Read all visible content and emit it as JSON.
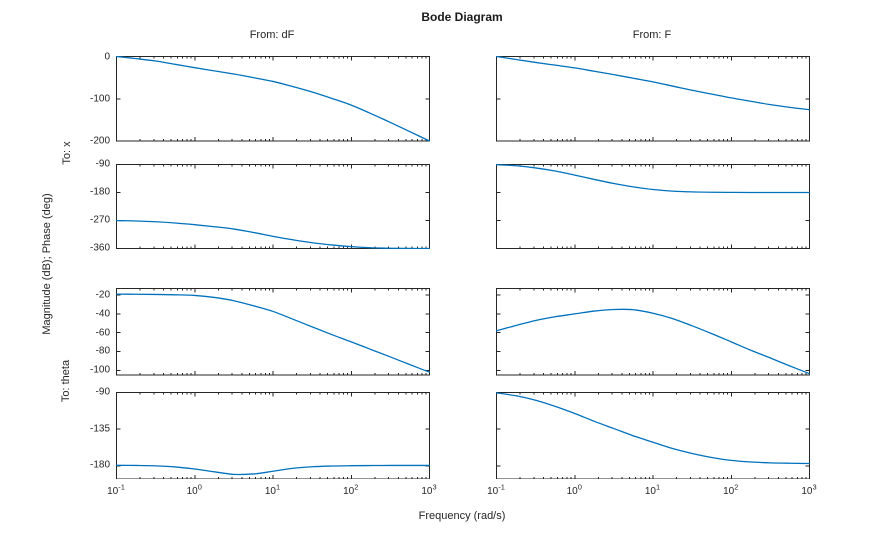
{
  "figure": {
    "title": "Bode Diagram",
    "xlabel": "Frequency (rad/s)",
    "ylabel": "Magnitude (dB); Phase (deg)",
    "column_headers": [
      "From: dF",
      "From: F"
    ],
    "row_group_labels": [
      "To: x",
      "To: theta"
    ],
    "background": "#ffffff"
  },
  "style": {
    "line_color": "#0072BD",
    "axis_color": "#262626",
    "text_color": "#262626",
    "title_color": "#1a1a1a"
  },
  "chart_data": {
    "type": "line",
    "x_scale": "log",
    "grid": false,
    "legend": "none",
    "xlim": [
      -1,
      3
    ],
    "x_tick_base": "10",
    "x_tick_exponents": [
      -1,
      0,
      1,
      2,
      3
    ],
    "x_log10": [
      -1,
      -0.75,
      -0.5,
      -0.25,
      0,
      0.25,
      0.5,
      0.75,
      1,
      1.25,
      1.5,
      1.75,
      2,
      2.25,
      2.5,
      2.75,
      3
    ],
    "panels": [
      {
        "name": "magnitude-to-x-from-dF",
        "row": 0,
        "col": 0,
        "input": "dF",
        "output": "x",
        "quantity": "magnitude-dB",
        "ylim": [
          -200,
          0
        ],
        "yticks": [
          0,
          -100,
          -200
        ],
        "values": [
          0,
          -5,
          -10.7,
          -18.5,
          -26.5,
          -34,
          -41.5,
          -50,
          -59,
          -71,
          -84,
          -99,
          -115,
          -135,
          -156,
          -178,
          -200
        ]
      },
      {
        "name": "magnitude-to-x-from-F",
        "row": 0,
        "col": 1,
        "input": "F",
        "output": "x",
        "quantity": "magnitude-dB",
        "ylim": [
          -200,
          0
        ],
        "yticks": [
          0,
          -100,
          -200
        ],
        "values": [
          0,
          -7,
          -14,
          -20.5,
          -27,
          -35,
          -43,
          -51.5,
          -60,
          -70,
          -80,
          -89,
          -98,
          -106,
          -114,
          -120.5,
          -126
        ]
      },
      {
        "name": "phase-to-x-from-dF",
        "row": 1,
        "col": 0,
        "input": "dF",
        "output": "x",
        "quantity": "phase-deg",
        "ylim": [
          -360,
          -90
        ],
        "yticks": [
          -90,
          -180,
          -270,
          -360
        ],
        "values": [
          -270.3,
          -271.5,
          -274,
          -278,
          -283.5,
          -290,
          -297.5,
          -308.5,
          -321,
          -332,
          -341.5,
          -348.5,
          -354,
          -357.5,
          -359.2,
          -359.8,
          -360
        ]
      },
      {
        "name": "phase-to-x-from-F",
        "row": 1,
        "col": 1,
        "input": "F",
        "output": "x",
        "quantity": "phase-deg",
        "ylim": [
          -360,
          -90
        ],
        "yticks": [
          -90,
          -180,
          -270,
          -360
        ],
        "values": [
          -90.5,
          -94,
          -101,
          -111,
          -124,
          -138,
          -151,
          -162,
          -170.5,
          -175.5,
          -178,
          -179.2,
          -179.7,
          -180,
          -180,
          -180,
          -180
        ]
      },
      {
        "name": "magnitude-to-theta-from-dF",
        "row": 2,
        "col": 0,
        "input": "dF",
        "output": "theta",
        "quantity": "magnitude-dB",
        "ylim": [
          -105,
          -13
        ],
        "yticks": [
          -20,
          -40,
          -60,
          -80,
          -100
        ],
        "values": [
          -19,
          -19.1,
          -19.3,
          -19.7,
          -20.4,
          -22.5,
          -26,
          -31.4,
          -37.4,
          -45.5,
          -53.8,
          -62,
          -69.8,
          -77.8,
          -85.8,
          -94,
          -102
        ]
      },
      {
        "name": "magnitude-to-theta-from-F",
        "row": 2,
        "col": 1,
        "input": "F",
        "output": "theta",
        "quantity": "magnitude-dB",
        "ylim": [
          -105,
          -13
        ],
        "yticks": [
          -20,
          -40,
          -60,
          -80,
          -100
        ],
        "values": [
          -58,
          -52.3,
          -47,
          -43,
          -40,
          -37,
          -35.3,
          -35.6,
          -39.3,
          -45,
          -52.7,
          -61,
          -69.8,
          -78.7,
          -86.9,
          -95.4,
          -103.6
        ]
      },
      {
        "name": "phase-to-theta-from-dF",
        "row": 3,
        "col": 0,
        "input": "dF",
        "output": "theta",
        "quantity": "phase-deg",
        "ylim": [
          -196,
          -90
        ],
        "yticks": [
          -90,
          -135,
          -180
        ],
        "values": [
          -179.2,
          -179.4,
          -179.9,
          -181.2,
          -183.8,
          -187.2,
          -190.3,
          -189.8,
          -186.5,
          -183,
          -181,
          -180.1,
          -179.7,
          -179.5,
          -179.4,
          -179.4,
          -179.4
        ]
      },
      {
        "name": "phase-to-theta-from-F",
        "row": 3,
        "col": 1,
        "input": "F",
        "output": "theta",
        "quantity": "phase-deg",
        "ylim": [
          -196,
          -90
        ],
        "yticks": [
          -90,
          -135,
          -180
        ],
        "values": [
          -90.5,
          -94,
          -99.5,
          -107,
          -115.7,
          -125.3,
          -134.2,
          -143.1,
          -151,
          -158.7,
          -164.7,
          -169.6,
          -173.2,
          -175.2,
          -176.2,
          -176.7,
          -177
        ]
      }
    ]
  }
}
